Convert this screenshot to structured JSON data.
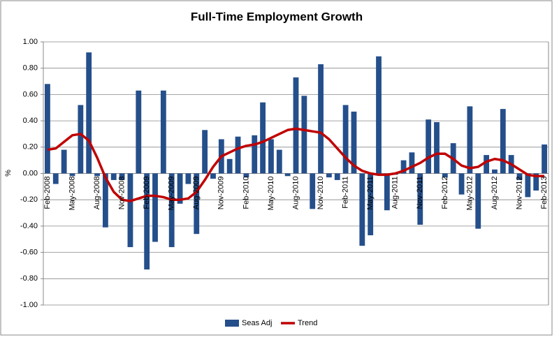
{
  "chart_data": {
    "type": "bar_line",
    "title": "Full-Time Employment Growth",
    "y_label": "%",
    "categories": [
      "Feb-2008",
      null,
      null,
      "May-2008",
      null,
      null,
      "Aug-2008",
      null,
      null,
      "Nov-2008",
      null,
      null,
      "Feb-2009",
      null,
      null,
      "May-2009",
      null,
      null,
      "Aug-2009",
      null,
      null,
      "Nov-2009",
      null,
      null,
      "Feb-2010",
      null,
      null,
      "May-2010",
      null,
      null,
      "Aug-2010",
      null,
      null,
      "Nov-2010",
      null,
      null,
      "Feb-2011",
      null,
      null,
      "May-2011",
      null,
      null,
      "Aug-2011",
      null,
      null,
      "Nov-2011",
      null,
      null,
      "Feb-2012",
      null,
      null,
      "May-2012",
      null,
      null,
      "Aug-2012",
      null,
      null,
      "Nov-2012",
      null,
      null,
      "Feb-2013"
    ],
    "series": [
      {
        "name": "Seas Adj",
        "type": "bar",
        "color": "#254f8b",
        "values": [
          0.68,
          -0.08,
          0.18,
          -0.02,
          0.52,
          0.92,
          -0.02,
          -0.41,
          -0.05,
          -0.05,
          -0.56,
          0.63,
          -0.73,
          -0.52,
          0.63,
          -0.56,
          -0.23,
          -0.08,
          -0.46,
          0.33,
          -0.04,
          0.26,
          0.11,
          0.28,
          -0.03,
          0.29,
          0.54,
          0.26,
          0.18,
          -0.02,
          0.73,
          0.59,
          -0.27,
          0.83,
          -0.03,
          -0.05,
          0.52,
          0.47,
          -0.55,
          -0.47,
          0.89,
          -0.28,
          -0.01,
          0.1,
          0.16,
          -0.39,
          0.41,
          0.39,
          -0.03,
          0.23,
          -0.16,
          0.51,
          -0.42,
          0.14,
          0.03,
          0.49,
          0.14,
          -0.05,
          -0.18,
          -0.13,
          0.22
        ]
      },
      {
        "name": "Trend",
        "type": "line",
        "color": "#c00000",
        "values": [
          0.18,
          0.19,
          0.24,
          0.29,
          0.3,
          0.25,
          0.12,
          -0.03,
          -0.14,
          -0.2,
          -0.21,
          -0.19,
          -0.17,
          -0.17,
          -0.18,
          -0.2,
          -0.2,
          -0.19,
          -0.14,
          -0.05,
          0.05,
          0.13,
          0.16,
          0.19,
          0.21,
          0.22,
          0.24,
          0.27,
          0.3,
          0.33,
          0.34,
          0.33,
          0.32,
          0.31,
          0.26,
          0.19,
          0.12,
          0.06,
          0.02,
          0.0,
          -0.01,
          -0.01,
          0.0,
          0.02,
          0.05,
          0.08,
          0.12,
          0.15,
          0.15,
          0.11,
          0.06,
          0.04,
          0.05,
          0.09,
          0.11,
          0.1,
          0.07,
          0.03,
          -0.01,
          -0.02,
          -0.02
        ]
      }
    ],
    "ylim": [
      -1,
      1
    ],
    "yticks": [
      {
        "value": 1,
        "label": "1.00"
      },
      {
        "value": 0.8,
        "label": "0.80"
      },
      {
        "value": 0.6,
        "label": "0.60"
      },
      {
        "value": 0.4,
        "label": "0.40"
      },
      {
        "value": 0.2,
        "label": "0.20"
      },
      {
        "value": 0,
        "label": "0.00"
      },
      {
        "value": -0.2,
        "label": "-0.20"
      },
      {
        "value": -0.4,
        "label": "-0.40"
      },
      {
        "value": -0.6,
        "label": "-0.60"
      },
      {
        "value": -0.8,
        "label": "-0.80"
      },
      {
        "value": -1,
        "label": "-1.00"
      }
    ],
    "grid": true,
    "legend": "bottom"
  }
}
